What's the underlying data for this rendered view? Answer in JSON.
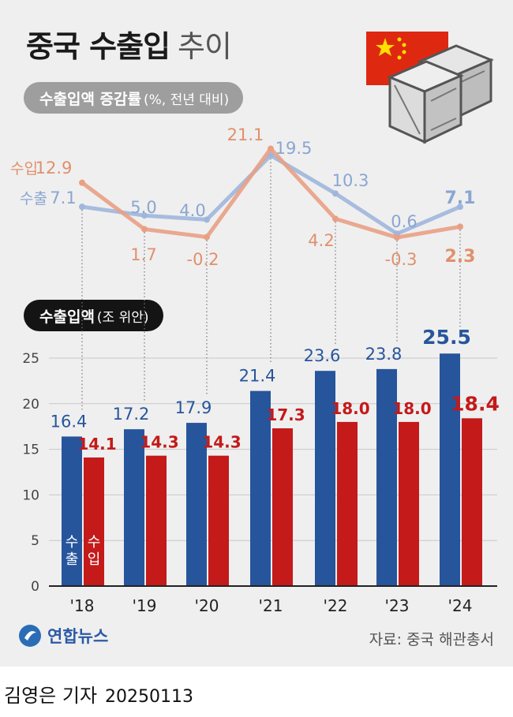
{
  "title": "중국 수출입",
  "title_suffix": "추이",
  "section1": {
    "bold": "수출입액 증감률",
    "normal": "(%, 전년 대비)"
  },
  "section2": {
    "bold": "수출입액",
    "normal": "(조 위안)"
  },
  "source": "자료: 중국 해관총서",
  "logo": "연합뉴스",
  "byline": {
    "name": "김영은 기자",
    "date": "20250113"
  },
  "colors": {
    "export": "#27559c",
    "import": "#c41a1a",
    "export_line": "#9fb6dc",
    "import_line": "#e8a084",
    "export_label": "#8aa6d2",
    "import_label": "#e0906c"
  },
  "chart_data": [
    {
      "type": "line",
      "categories": [
        "'18",
        "'19",
        "'20",
        "'21",
        "'22",
        "'23",
        "'24"
      ],
      "series": [
        {
          "name": "수출",
          "values": [
            7.1,
            5.0,
            4.0,
            19.5,
            10.3,
            0.6,
            7.1
          ],
          "labels": [
            "7.1",
            "5.0",
            "4.0",
            "19.5",
            "10.3",
            "0.6",
            "7.1"
          ]
        },
        {
          "name": "수입",
          "values": [
            12.9,
            1.7,
            -0.2,
            21.1,
            4.2,
            -0.3,
            2.3
          ],
          "labels": [
            "12.9",
            "1.7",
            "-0.2",
            "21.1",
            "4.2",
            "-0.3",
            "2.3"
          ]
        }
      ]
    },
    {
      "type": "bar",
      "categories": [
        "'18",
        "'19",
        "'20",
        "'21",
        "'22",
        "'23",
        "'24"
      ],
      "ylim": [
        0,
        25
      ],
      "yticks": [
        "0",
        "5",
        "10",
        "15",
        "20",
        "25"
      ],
      "grid": true,
      "series": [
        {
          "name": "수출",
          "values": [
            16.4,
            17.2,
            17.9,
            21.4,
            23.6,
            23.8,
            25.5
          ],
          "labels": [
            "16.4",
            "17.2",
            "17.9",
            "21.4",
            "23.6",
            "23.8",
            "25.5"
          ]
        },
        {
          "name": "수입",
          "values": [
            14.1,
            14.3,
            14.3,
            17.3,
            18.0,
            18.0,
            18.4
          ],
          "labels": [
            "14.1",
            "14.3",
            "14.3",
            "17.3",
            "18.0",
            "18.0",
            "18.4"
          ]
        }
      ],
      "in_bar_labels": [
        "수출",
        "수입"
      ]
    }
  ]
}
